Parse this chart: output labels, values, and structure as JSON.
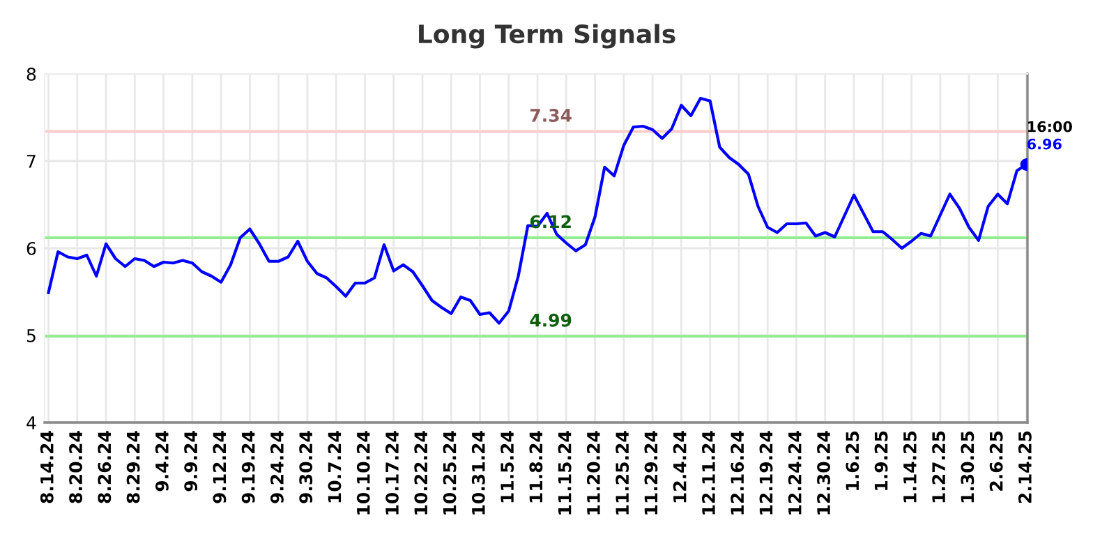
{
  "chart_data": {
    "type": "line",
    "title": "Long Term Signals",
    "categories": [
      "8.14.24",
      null,
      null,
      "8.20.24",
      null,
      null,
      "8.26.24",
      null,
      null,
      "8.29.24",
      null,
      null,
      "9.4.24",
      null,
      null,
      "9.9.24",
      null,
      null,
      "9.12.24",
      null,
      null,
      "9.19.24",
      null,
      null,
      "9.24.24",
      null,
      null,
      "9.30.24",
      null,
      null,
      "10.7.24",
      null,
      null,
      "10.10.24",
      null,
      null,
      "10.17.24",
      null,
      null,
      "10.22.24",
      null,
      null,
      "10.25.24",
      null,
      null,
      "10.31.24",
      null,
      null,
      "11.5.24",
      null,
      null,
      "11.8.24",
      null,
      null,
      "11.15.24",
      null,
      null,
      "11.20.24",
      null,
      null,
      "11.25.24",
      null,
      null,
      "11.29.24",
      null,
      null,
      "12.4.24",
      null,
      null,
      "12.11.24",
      null,
      null,
      "12.16.24",
      null,
      null,
      "12.19.24",
      null,
      null,
      "12.24.24",
      null,
      null,
      "12.30.24",
      null,
      null,
      "1.6.25",
      null,
      null,
      "1.9.25",
      null,
      null,
      "1.14.25",
      null,
      null,
      "1.27.25",
      null,
      null,
      "1.30.25",
      null,
      null,
      "2.6.25",
      null,
      null,
      "2.14.25"
    ],
    "ylim": [
      4,
      8
    ],
    "yticks": [
      4,
      5,
      6,
      7,
      8
    ],
    "grid": true,
    "series": [
      {
        "color": "#0000ff",
        "values": [
          5.49,
          5.96,
          5.9,
          5.88,
          5.92,
          5.68,
          6.05,
          5.88,
          5.79,
          5.88,
          5.86,
          5.79,
          5.84,
          5.83,
          5.86,
          5.83,
          5.73,
          5.68,
          5.61,
          5.81,
          6.12,
          6.22,
          6.05,
          5.85,
          5.85,
          5.9,
          6.08,
          5.85,
          5.71,
          5.66,
          5.56,
          5.45,
          5.6,
          5.6,
          5.66,
          6.04,
          5.74,
          5.81,
          5.73,
          5.57,
          5.4,
          5.32,
          5.25,
          5.44,
          5.4,
          5.24,
          5.26,
          5.14,
          5.28,
          5.68,
          6.26,
          6.25,
          6.4,
          6.16,
          6.06,
          5.97,
          6.04,
          6.36,
          6.93,
          6.83,
          7.18,
          7.39,
          7.4,
          7.36,
          7.26,
          7.37,
          7.64,
          7.52,
          7.72,
          7.69,
          7.16,
          7.04,
          6.96,
          6.85,
          6.48,
          6.24,
          6.18,
          6.28,
          6.28,
          6.29,
          6.14,
          6.18,
          6.13,
          6.37,
          6.61,
          6.4,
          6.19,
          6.19,
          6.1,
          6.0,
          6.08,
          6.17,
          6.14,
          6.38,
          6.62,
          6.46,
          6.24,
          6.09,
          6.48,
          6.62,
          6.51,
          6.89,
          6.96
        ]
      },
      {
        "type": "scatter",
        "color": "#0000ff",
        "x": [
          "2.14.25"
        ],
        "values": [
          6.96
        ]
      }
    ],
    "ref_lines": [
      {
        "axis": "y",
        "value": 7.34,
        "label": "7.34",
        "color": "#ffcccc"
      },
      {
        "axis": "y",
        "value": 6.12,
        "label": "6.12",
        "color": "#90ee90"
      },
      {
        "axis": "y",
        "value": 4.99,
        "label": "4.99",
        "color": "#90ee90"
      }
    ],
    "annotations": [
      {
        "text": "16:00",
        "x": "2.14.25",
        "y": 6.96
      },
      {
        "text": "6.96",
        "x": "2.14.25",
        "y": 6.96
      }
    ]
  }
}
